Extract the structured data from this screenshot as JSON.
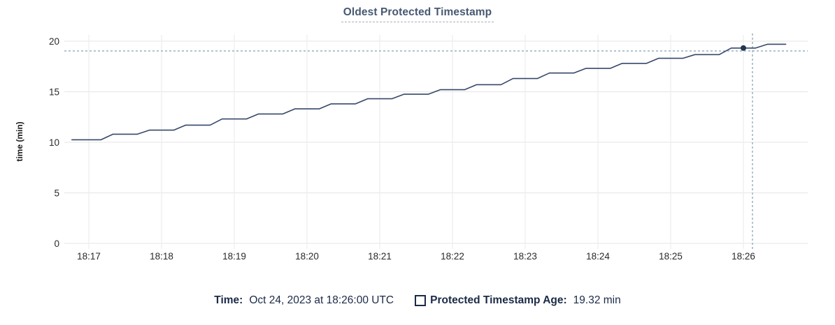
{
  "title": "Oldest Protected Timestamp",
  "footer": {
    "time_label": "Time:",
    "time_value": "Oct 24, 2023 at 18:26:00 UTC",
    "series_label": "Protected Timestamp Age:",
    "series_value": "19.32 min",
    "swatch_icon": "square-outline-icon"
  },
  "colors": {
    "background": "#ffffff",
    "title_text": "#475872",
    "title_underline": "#a6aebc",
    "axis_text": "#2a2a2e",
    "axis_title_text": "#1a1a1a",
    "h_gridline": "#e9e9e9",
    "v_gridline": "#eeeeee",
    "series_line": "#36486b",
    "hover_dot": "#26354f",
    "crosshair": "#9db8c5",
    "footer_text": "#1b2a47"
  },
  "chart_data": {
    "type": "line",
    "title": "Oldest Protected Timestamp",
    "xlabel": "",
    "ylabel": "time (min)",
    "grid": true,
    "legend_position": "bottom",
    "x_unit": "minutes after 18:00 UTC",
    "x_tick_values": [
      17,
      18,
      19,
      20,
      21,
      22,
      23,
      24,
      25,
      26
    ],
    "x_tick_labels": [
      "18:17",
      "18:18",
      "18:19",
      "18:20",
      "18:21",
      "18:22",
      "18:23",
      "18:24",
      "18:25",
      "18:26"
    ],
    "y_ticks": [
      0,
      5,
      10,
      15,
      20
    ],
    "ylim": [
      -0.55,
      20.75
    ],
    "xlim": [
      16.67,
      26.89
    ],
    "series": [
      {
        "name": "Protected Timestamp Age",
        "unit": "min",
        "points": [
          [
            16.767,
            10.25
          ],
          [
            17.0,
            10.25
          ],
          [
            17.167,
            10.25
          ],
          [
            17.333,
            10.8
          ],
          [
            17.5,
            10.8
          ],
          [
            17.667,
            10.8
          ],
          [
            17.833,
            11.2
          ],
          [
            18.0,
            11.2
          ],
          [
            18.167,
            11.2
          ],
          [
            18.333,
            11.7
          ],
          [
            18.5,
            11.7
          ],
          [
            18.667,
            11.7
          ],
          [
            18.833,
            12.3
          ],
          [
            19.0,
            12.3
          ],
          [
            19.167,
            12.3
          ],
          [
            19.333,
            12.8
          ],
          [
            19.5,
            12.8
          ],
          [
            19.667,
            12.8
          ],
          [
            19.833,
            13.3
          ],
          [
            20.0,
            13.3
          ],
          [
            20.167,
            13.3
          ],
          [
            20.333,
            13.8
          ],
          [
            20.5,
            13.8
          ],
          [
            20.667,
            13.8
          ],
          [
            20.833,
            14.3
          ],
          [
            21.0,
            14.3
          ],
          [
            21.167,
            14.3
          ],
          [
            21.333,
            14.75
          ],
          [
            21.5,
            14.75
          ],
          [
            21.667,
            14.75
          ],
          [
            21.833,
            15.2
          ],
          [
            22.0,
            15.2
          ],
          [
            22.167,
            15.2
          ],
          [
            22.333,
            15.7
          ],
          [
            22.5,
            15.7
          ],
          [
            22.667,
            15.7
          ],
          [
            22.833,
            16.3
          ],
          [
            23.0,
            16.3
          ],
          [
            23.167,
            16.3
          ],
          [
            23.333,
            16.85
          ],
          [
            23.5,
            16.85
          ],
          [
            23.667,
            16.85
          ],
          [
            23.833,
            17.3
          ],
          [
            24.0,
            17.3
          ],
          [
            24.167,
            17.3
          ],
          [
            24.333,
            17.8
          ],
          [
            24.5,
            17.8
          ],
          [
            24.667,
            17.8
          ],
          [
            24.833,
            18.3
          ],
          [
            25.0,
            18.3
          ],
          [
            25.167,
            18.3
          ],
          [
            25.333,
            18.67
          ],
          [
            25.5,
            18.67
          ],
          [
            25.667,
            18.67
          ],
          [
            25.833,
            19.32
          ],
          [
            26.0,
            19.32
          ],
          [
            26.167,
            19.32
          ],
          [
            26.333,
            19.7
          ],
          [
            26.583,
            19.7
          ]
        ]
      }
    ],
    "hover": {
      "t": 26.0,
      "value": 19.32,
      "time_text": "18:26:00",
      "crosshair_x_t": 26.125,
      "crosshair_y_value": 19.03
    }
  }
}
